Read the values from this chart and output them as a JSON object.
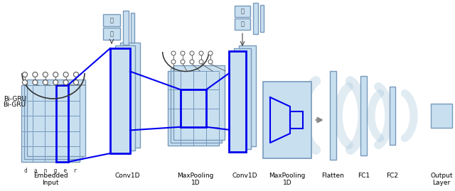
{
  "bg_color": "#ffffff",
  "light_blue": "#c8dff0",
  "mid_blue": "#b0ccdf",
  "dark_border": "#7799bb",
  "darker_border": "#4477aa",
  "blue_line": "#0000ee",
  "gray_border": "#999999",
  "dark_gray": "#444444",
  "labels": {
    "bigru": "Bi-GRU",
    "embedded": "Embedded\nInput",
    "conv1d_1": "Conv1D",
    "maxpool1": "MaxPooling\n1D",
    "conv1d_2": "Conv1D",
    "maxpool2": "MaxPooling\n1D",
    "flatten": "Flatten",
    "fc1": "FC1",
    "fc2": "FC2",
    "output": "Output\nLayer",
    "danger": "d  a  n  g  e  r"
  },
  "fontsize": 6.5,
  "fontsize_small": 5.5
}
